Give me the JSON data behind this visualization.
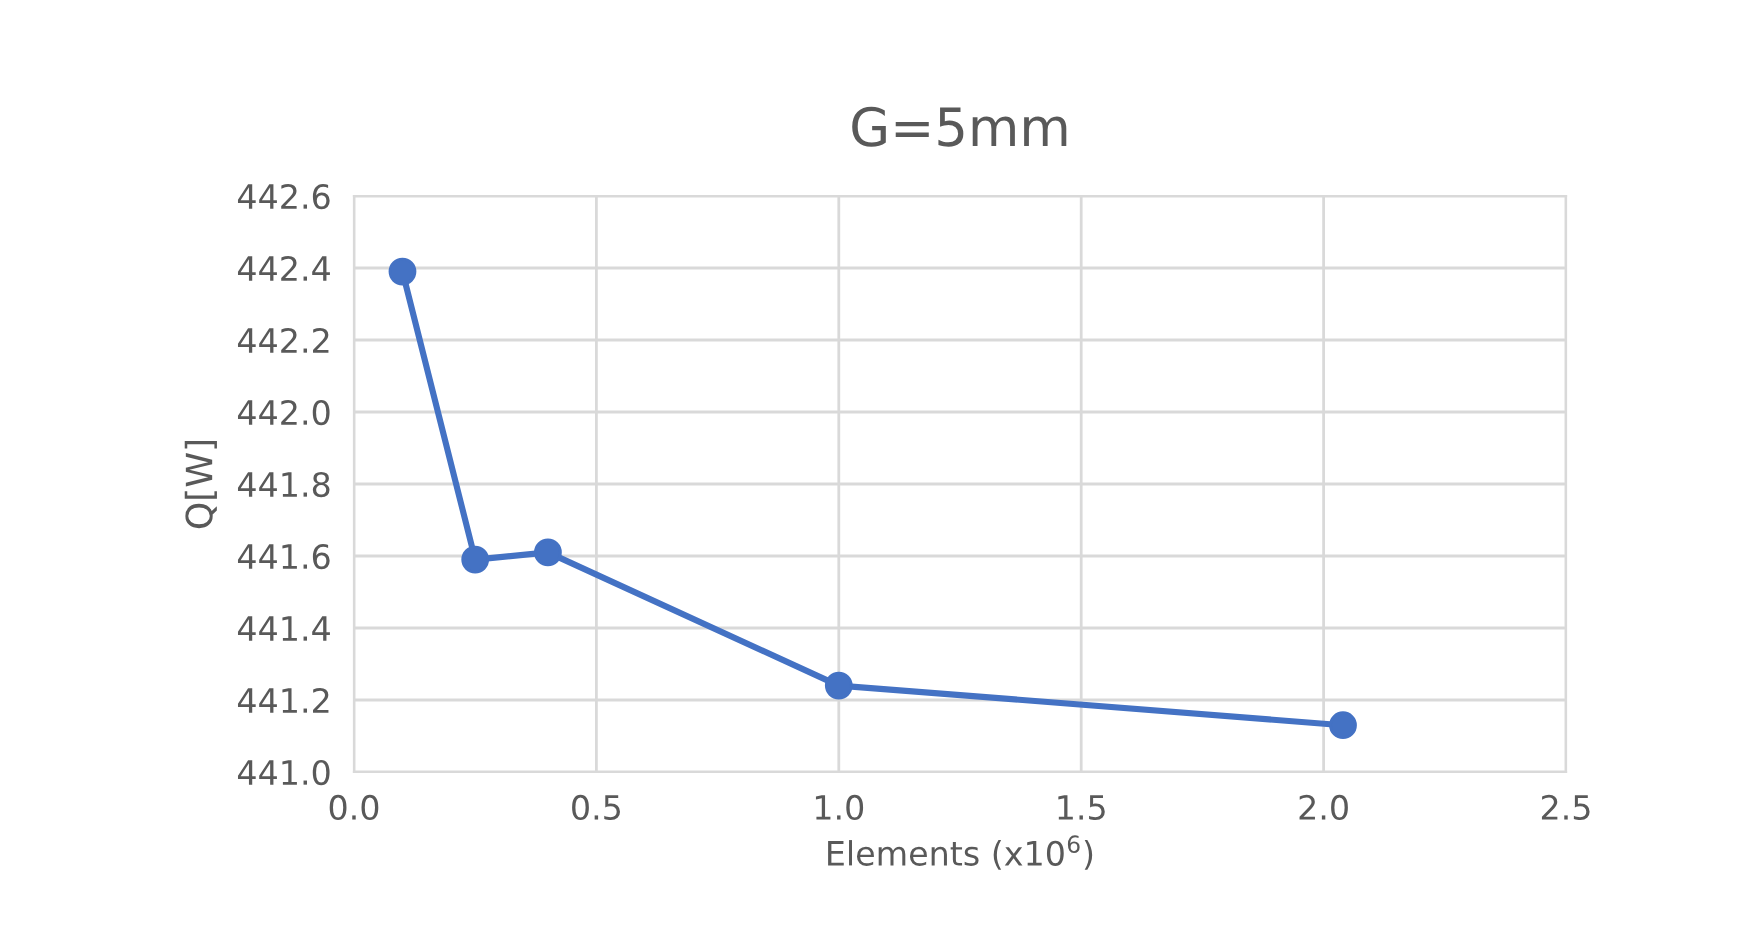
{
  "chart_data": {
    "type": "line",
    "title": "G=5mm",
    "xlabel": "Elements (x10$^{6}$)",
    "ylabel": "Q[W]",
    "x": [
      0.1,
      0.25,
      0.4,
      1.0,
      2.04
    ],
    "series": [
      {
        "color": "#4472c4",
        "values": [
          442.39,
          441.59,
          441.61,
          441.24,
          441.13
        ]
      }
    ],
    "xlim": [
      0.0,
      2.5
    ],
    "xticks": [
      {
        "value": 0,
        "label": "0.0"
      },
      0.5,
      {
        "value": 1,
        "label": "1.0"
      },
      1.5,
      {
        "value": 2,
        "label": "2.0"
      },
      2.5
    ],
    "ylim": [
      441.0,
      442.6
    ],
    "yticks": [
      {
        "value": 441,
        "label": "441.0"
      },
      441.2,
      441.4,
      441.6,
      441.8,
      {
        "value": 442,
        "label": "442.0"
      },
      442.2,
      442.4,
      442.6
    ],
    "grid": true,
    "marker": "circle",
    "line_style": "solid",
    "legend": false
  }
}
